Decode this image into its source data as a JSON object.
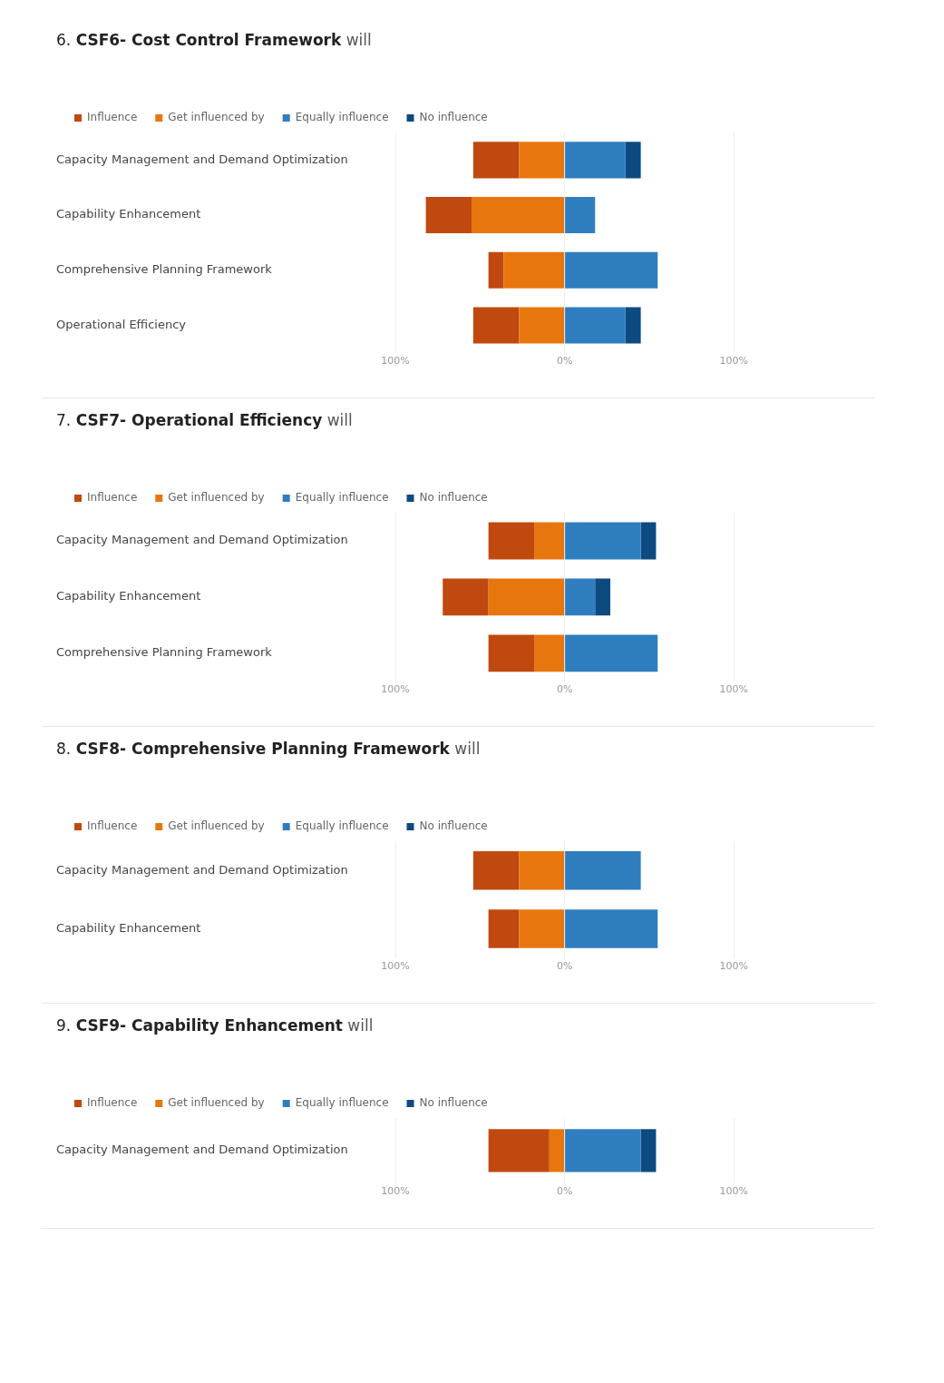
{
  "chart_data": [
    {
      "type": "bar",
      "title": "6. CSF6- Cost Control Framework will",
      "orientation": "horizontal",
      "stacked": true,
      "legend": "top left",
      "grid": "x",
      "categories": [
        "Capacity Management and Demand Optimization",
        "Capability Enhancement",
        "Comprehensive Planning Framework",
        "Operational Efficiency"
      ],
      "xlim": [
        -100,
        100
      ],
      "xticks": [
        {
          "value": -100,
          "label": "100%"
        },
        {
          "value": 0,
          "label": "0%"
        },
        {
          "value": 100,
          "label": "100%"
        }
      ],
      "series": [
        {
          "name": "Get influenced by",
          "color": "#e8760f",
          "values": [
            -27,
            -55,
            -36,
            -27
          ]
        },
        {
          "name": "Influence",
          "color": "#c0490f",
          "values": [
            -27,
            -27,
            -9,
            -27
          ]
        },
        {
          "name": "Equally influence",
          "color": "#2e7ebf",
          "values": [
            36,
            18,
            55,
            36
          ]
        },
        {
          "name": "No influence",
          "color": "#0d4a80",
          "values": [
            9,
            0,
            0,
            9
          ]
        }
      ]
    },
    {
      "type": "bar",
      "title": "7. CSF7- Operational Efficiency will",
      "orientation": "horizontal",
      "stacked": true,
      "legend": "top left",
      "grid": "x",
      "categories": [
        "Capacity Management and Demand Optimization",
        "Capability Enhancement",
        "Comprehensive Planning Framework"
      ],
      "xlim": [
        -100,
        100
      ],
      "xticks": [
        {
          "value": -100,
          "label": "100%"
        },
        {
          "value": 0,
          "label": "0%"
        },
        {
          "value": 100,
          "label": "100%"
        }
      ],
      "series": [
        {
          "name": "Get influenced by",
          "color": "#e8760f",
          "values": [
            -18,
            -45,
            -18
          ]
        },
        {
          "name": "Influence",
          "color": "#c0490f",
          "values": [
            -27,
            -27,
            -27
          ]
        },
        {
          "name": "Equally influence",
          "color": "#2e7ebf",
          "values": [
            45,
            18,
            55
          ]
        },
        {
          "name": "No influence",
          "color": "#0d4a80",
          "values": [
            9,
            9,
            0
          ]
        }
      ]
    },
    {
      "type": "bar",
      "title": "8. CSF8- Comprehensive Planning Framework will",
      "orientation": "horizontal",
      "stacked": true,
      "legend": "top left",
      "grid": "x",
      "categories": [
        "Capacity Management and Demand Optimization",
        "Capability Enhancement"
      ],
      "xlim": [
        -100,
        100
      ],
      "xticks": [
        {
          "value": -100,
          "label": "100%"
        },
        {
          "value": 0,
          "label": "0%"
        },
        {
          "value": 100,
          "label": "100%"
        }
      ],
      "series": [
        {
          "name": "Get influenced by",
          "color": "#e8760f",
          "values": [
            -27,
            -27
          ]
        },
        {
          "name": "Influence",
          "color": "#c0490f",
          "values": [
            -27,
            -18
          ]
        },
        {
          "name": "Equally influence",
          "color": "#2e7ebf",
          "values": [
            45,
            55
          ]
        },
        {
          "name": "No influence",
          "color": "#0d4a80",
          "values": [
            0,
            0
          ]
        }
      ]
    },
    {
      "type": "bar",
      "title": "9. CSF9- Capability Enhancement will",
      "orientation": "horizontal",
      "stacked": true,
      "legend": "top left",
      "grid": "x",
      "categories": [
        "Capacity Management and Demand Optimization"
      ],
      "xlim": [
        -100,
        100
      ],
      "xticks": [
        {
          "value": -100,
          "label": "100%"
        },
        {
          "value": 0,
          "label": "0%"
        },
        {
          "value": 100,
          "label": "100%"
        }
      ],
      "series": [
        {
          "name": "Get influenced by",
          "color": "#e8760f",
          "values": [
            -9
          ]
        },
        {
          "name": "Influence",
          "color": "#c0490f",
          "values": [
            -36
          ]
        },
        {
          "name": "Equally influence",
          "color": "#2e7ebf",
          "values": [
            45
          ]
        },
        {
          "name": "No influence",
          "color": "#0d4a80",
          "values": [
            9
          ]
        }
      ]
    }
  ]
}
